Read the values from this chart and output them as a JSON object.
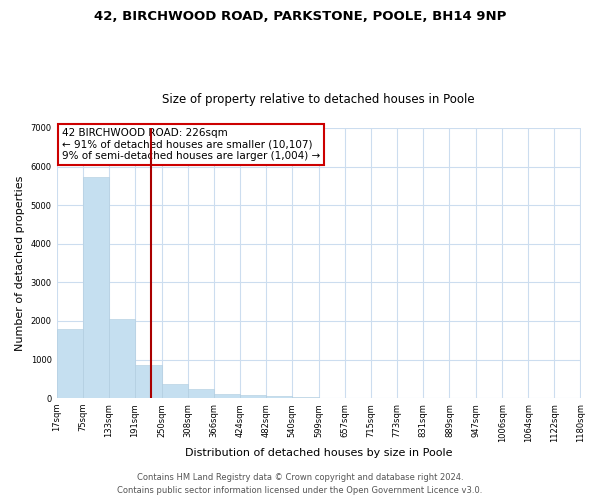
{
  "title_line1": "42, BIRCHWOOD ROAD, PARKSTONE, POOLE, BH14 9NP",
  "title_line2": "Size of property relative to detached houses in Poole",
  "xlabel": "Distribution of detached houses by size in Poole",
  "ylabel": "Number of detached properties",
  "bar_edges": [
    17,
    75,
    133,
    191,
    250,
    308,
    366,
    424,
    482,
    540,
    599,
    657,
    715,
    773,
    831,
    889,
    947,
    1006,
    1064,
    1122,
    1180
  ],
  "bar_heights": [
    1780,
    5730,
    2050,
    850,
    370,
    240,
    110,
    70,
    50,
    30,
    15,
    10,
    5,
    0,
    0,
    0,
    0,
    0,
    0,
    0
  ],
  "tick_labels": [
    "17sqm",
    "75sqm",
    "133sqm",
    "191sqm",
    "250sqm",
    "308sqm",
    "366sqm",
    "424sqm",
    "482sqm",
    "540sqm",
    "599sqm",
    "657sqm",
    "715sqm",
    "773sqm",
    "831sqm",
    "889sqm",
    "947sqm",
    "1006sqm",
    "1064sqm",
    "1122sqm",
    "1180sqm"
  ],
  "bar_color": "#c5dff0",
  "bar_edgecolor": "#b0ccde",
  "property_line_x": 226,
  "property_line_color": "#aa0000",
  "annotation_line1": "42 BIRCHWOOD ROAD: 226sqm",
  "annotation_line2": "← 91% of detached houses are smaller (10,107)",
  "annotation_line3": "9% of semi-detached houses are larger (1,004) →",
  "annotation_box_facecolor": "#ffffff",
  "annotation_box_edgecolor": "#cc0000",
  "ylim": [
    0,
    7000
  ],
  "yticks": [
    0,
    1000,
    2000,
    3000,
    4000,
    5000,
    6000,
    7000
  ],
  "footer_line1": "Contains HM Land Registry data © Crown copyright and database right 2024.",
  "footer_line2": "Contains public sector information licensed under the Open Government Licence v3.0.",
  "background_color": "#ffffff",
  "grid_color": "#ccddef",
  "title_fontsize": 9.5,
  "subtitle_fontsize": 8.5,
  "axis_label_fontsize": 8,
  "tick_fontsize": 6,
  "annotation_fontsize": 7.5,
  "footer_fontsize": 6
}
